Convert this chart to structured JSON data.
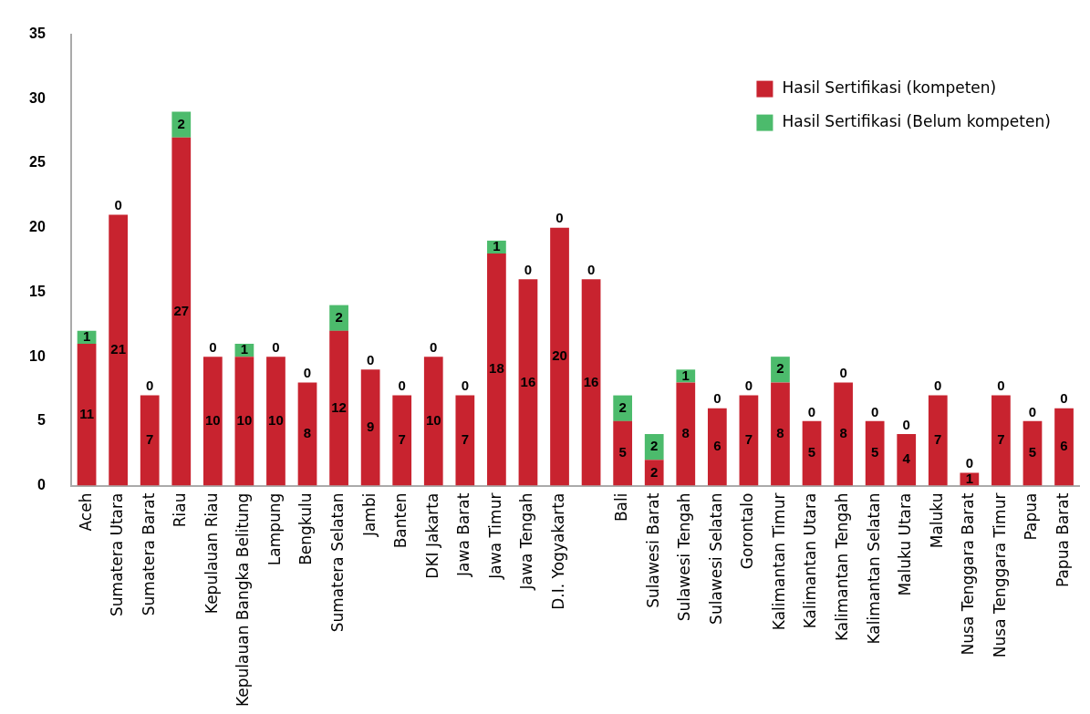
{
  "chart_data": {
    "type": "bar",
    "stacked": true,
    "data_labels": true,
    "grid": false,
    "legend": "top right",
    "categories": [
      "Aceh",
      "Sumatera Utara",
      "Sumatera Barat",
      "Riau",
      "Kepulauan Riau",
      "Kepulauan Bangka Belitung",
      "Lampung",
      "Bengkulu",
      "Sumatera Selatan",
      "Jambi",
      "Banten",
      "DKI Jakarta",
      "Jawa Barat",
      "Jawa Timur",
      "Jawa Tengah",
      "D.I. Yogyakarta",
      null,
      "Bali",
      "Sulawesi Barat",
      "Sulawesi Tengah",
      "Sulawesi Selatan",
      "Gorontalo",
      "Kalimantan Timur",
      "Kalimantan Utara",
      "Kalimantan Tengah",
      "Kalimantan Selatan",
      "Maluku Utara",
      "Maluku",
      "Nusa Tenggara Barat",
      "Nusa Tenggara Timur",
      "Papua",
      "Papua Barat"
    ],
    "ylim": [
      0,
      35
    ],
    "yticks": [
      0,
      5,
      10,
      15,
      20,
      25,
      30,
      35
    ],
    "series": [
      {
        "name": "Hasil Sertifikasi (kompeten)",
        "color": "#c8232f",
        "values": [
          11,
          21,
          7,
          27,
          10,
          10,
          10,
          8,
          12,
          9,
          7,
          10,
          7,
          18,
          16,
          20,
          16,
          5,
          2,
          8,
          6,
          7,
          8,
          5,
          8,
          5,
          4,
          7,
          1,
          7,
          5,
          6
        ]
      },
      {
        "name": "Hasil Sertifikasi (Belum kompeten)",
        "color": "#4cbb6c",
        "values": [
          1,
          0,
          0,
          2,
          0,
          1,
          0,
          0,
          2,
          0,
          0,
          0,
          0,
          1,
          0,
          0,
          0,
          2,
          2,
          1,
          0,
          0,
          2,
          0,
          0,
          0,
          0,
          0,
          0,
          0,
          0,
          0
        ]
      }
    ]
  }
}
